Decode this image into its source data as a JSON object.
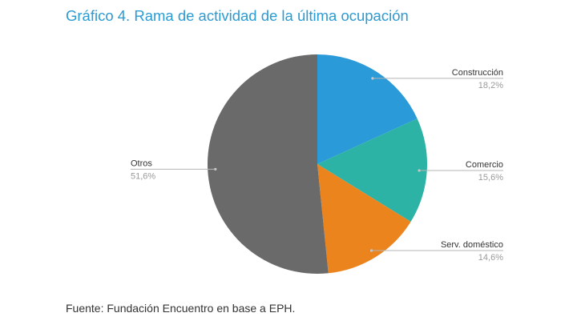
{
  "chart_data": {
    "type": "pie",
    "title": "Gráfico 4. Rama de actividad de la última ocupación",
    "slices": [
      {
        "label": "Construcción",
        "value": 18.2,
        "value_label": "18,2%",
        "color": "#2b9ad8"
      },
      {
        "label": "Comercio",
        "value": 15.6,
        "value_label": "15,6%",
        "color": "#2db3a6"
      },
      {
        "label": "Serv. doméstico",
        "value": 14.6,
        "value_label": "14,6%",
        "color": "#ec841e"
      },
      {
        "label": "Otros",
        "value": 51.6,
        "value_label": "51,6%",
        "color": "#6a6a6a"
      }
    ],
    "start_position": "12 o'clock",
    "direction": "clockwise",
    "legend": "none"
  },
  "source": "Fuente: Fundación Encuentro en base a EPH."
}
